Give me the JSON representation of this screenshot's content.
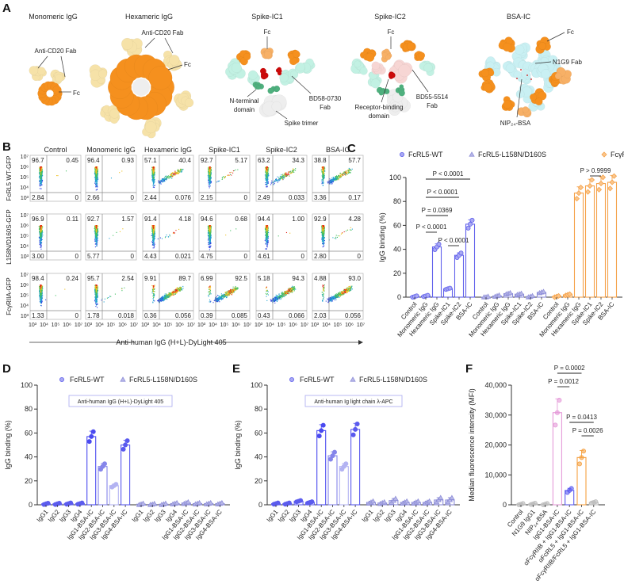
{
  "panel_labels": [
    "A",
    "B",
    "C",
    "D",
    "E",
    "F"
  ],
  "panel_a": {
    "structures": [
      {
        "title": "Monomeric IgG",
        "labels": [
          [
            "Anti-CD20 Fab"
          ],
          [
            "Fc"
          ]
        ]
      },
      {
        "title": "Hexameric IgG",
        "labels": [
          [
            "Anti-CD20 Fab"
          ],
          [
            "Fc"
          ]
        ]
      },
      {
        "title": "Spike-IC1",
        "labels": [
          [
            "Fc"
          ],
          [
            "N-terminal",
            "domain"
          ],
          [
            "BD58-0730",
            "Fab"
          ],
          [
            "Spike trimer"
          ]
        ]
      },
      {
        "title": "Spike-IC2",
        "labels": [
          [
            "Fc"
          ],
          [
            "Receptor-binding",
            "domain"
          ],
          [
            "BD55-5514",
            "Fab"
          ]
        ]
      },
      {
        "title": "BSA-IC",
        "labels": [
          [
            "Fc"
          ],
          [
            "N1G9 Fab"
          ],
          [
            "NIP₂₄-BSA"
          ]
        ]
      }
    ],
    "colors": {
      "fc": "#f5901e",
      "fc_light": "#f7b066",
      "anti_cd20_fab": "#f6e2a8",
      "spike_fab": "#c2f1e3",
      "bd55_fab": "#f7d6d4",
      "bsa_fab": "#c9f0f3",
      "rbd": "#cc0a0a",
      "ntd": "#4fb07e",
      "spike_trimer": "#eeeeee"
    }
  },
  "panel_b": {
    "columns": [
      "Control",
      "Monomeric IgG",
      "Hexameric IgG",
      "Spike-IC1",
      "Spike-IC2",
      "BSA-IC"
    ],
    "rows": [
      "FcRL5 WT-GFP",
      "L158N/D160S-GFP",
      "FcγRIIA-GFP"
    ],
    "axis_ticks": [
      "10³",
      "10⁴",
      "10⁵",
      "10⁶",
      "10⁷"
    ],
    "x_axis_title": "Anti-human IgG (H+L)-DyLight 405",
    "quadrants": [
      [
        {
          "ul": "96.7",
          "ur": "0.45",
          "ll": "2.84",
          "lr": "0"
        },
        {
          "ul": "96.4",
          "ur": "0.93",
          "ll": "2.66",
          "lr": "0"
        },
        {
          "ul": "57.1",
          "ur": "40.4",
          "ll": "2.44",
          "lr": "0.076"
        },
        {
          "ul": "92.7",
          "ur": "5.17",
          "ll": "2.15",
          "lr": "0"
        },
        {
          "ul": "63.2",
          "ur": "34.3",
          "ll": "2.49",
          "lr": "0.033"
        },
        {
          "ul": "38.8",
          "ur": "57.7",
          "ll": "3.36",
          "lr": "0.17"
        }
      ],
      [
        {
          "ul": "96.9",
          "ur": "0.11",
          "ll": "3.00",
          "lr": "0"
        },
        {
          "ul": "92.7",
          "ur": "1.57",
          "ll": "5.77",
          "lr": "0"
        },
        {
          "ul": "91.4",
          "ur": "4.18",
          "ll": "4.43",
          "lr": "0.021"
        },
        {
          "ul": "94.6",
          "ur": "0.68",
          "ll": "4.75",
          "lr": "0"
        },
        {
          "ul": "94.4",
          "ur": "1.00",
          "ll": "4.61",
          "lr": "0"
        },
        {
          "ul": "92.9",
          "ur": "4.28",
          "ll": "2.80",
          "lr": "0"
        }
      ],
      [
        {
          "ul": "98.4",
          "ur": "0.24",
          "ll": "1.33",
          "lr": "0"
        },
        {
          "ul": "95.7",
          "ur": "2.54",
          "ll": "1.78",
          "lr": "0.018"
        },
        {
          "ul": "9.91",
          "ur": "89.7",
          "ll": "0.36",
          "lr": "0.056"
        },
        {
          "ul": "6.99",
          "ur": "92.5",
          "ll": "0.39",
          "lr": "0.085"
        },
        {
          "ul": "5.18",
          "ur": "94.3",
          "ll": "0.43",
          "lr": "0.066"
        },
        {
          "ul": "4.88",
          "ur": "93.0",
          "ll": "2.03",
          "lr": "0.056"
        }
      ]
    ]
  },
  "chart_data": [
    {
      "panel": "C",
      "type": "bar",
      "ylabel": "IgG binding (%)",
      "ylim": [
        0,
        100
      ],
      "yticks": [
        "0",
        "20",
        "40",
        "60",
        "80",
        "100"
      ],
      "legend_placement": "top",
      "series": [
        {
          "name": "FcRL5-WT",
          "marker": "circle",
          "color": "#6262ec",
          "categories": [
            "Control",
            "Monomeric IgG",
            "Hexameric IgG",
            "Spike-IC1",
            "Spike-IC2",
            "BSA-IC"
          ],
          "values": [
            0.5,
            1,
            42,
            7,
            35,
            61
          ]
        },
        {
          "name": "FcRL5-L158N/D160S",
          "marker": "triangle",
          "color": "#8e8ed8",
          "categories": [
            "Control",
            "Monomeric IgG",
            "Hexameric IgG",
            "Spike-IC1",
            "Spike-IC2",
            "BSA-IC"
          ],
          "values": [
            0,
            1,
            3,
            2.5,
            0.5,
            4
          ]
        },
        {
          "name": "FcγRIIA",
          "marker": "diamond",
          "color": "#f5a24a",
          "categories": [
            "Control",
            "Monomeric IgG",
            "Hexameric IgG",
            "Spike-IC1",
            "Spike-IC2",
            "BSA-IC"
          ],
          "values": [
            0.5,
            2,
            87,
            93,
            95,
            96
          ]
        }
      ],
      "p_values": [
        {
          "series": 0,
          "between": [
            "Monomeric IgG",
            "BSA-IC"
          ],
          "text": "P < 0.0001"
        },
        {
          "series": 0,
          "between": [
            "Monomeric IgG",
            "Spike-IC2"
          ],
          "text": "P < 0.0001"
        },
        {
          "series": 0,
          "between": [
            "Monomeric IgG",
            "Spike-IC1"
          ],
          "text": "P = 0.0369"
        },
        {
          "series": 0,
          "between": [
            "Monomeric IgG",
            "Hexameric IgG"
          ],
          "text": "P < 0.0001"
        },
        {
          "series": 0,
          "between": [
            "Spike-IC1",
            "Spike-IC2"
          ],
          "text": "P < 0.0001"
        },
        {
          "series": 2,
          "between": [
            "Spike-IC1",
            "Spike-IC2"
          ],
          "text": "P > 0.9999"
        }
      ]
    },
    {
      "panel": "D",
      "type": "bar",
      "annotation": "Anti-human IgG (H+L)-DyLight 405",
      "ylabel": "IgG binding (%)",
      "ylim": [
        0,
        100
      ],
      "yticks": [
        "0",
        "20",
        "40",
        "60",
        "80",
        "100"
      ],
      "legend_placement": "top",
      "series": [
        {
          "name": "FcRL5-WT",
          "marker": "circle",
          "color": "#6262ec",
          "categories": [
            "IgG1",
            "IgG2",
            "IgG3",
            "IgG4",
            "IgG1-BSA-IC",
            "IgG2-BSA-IC",
            "IgG3-BSA-IC",
            "IgG4-BSA-IC"
          ],
          "values": [
            0.8,
            0.8,
            1,
            1,
            57,
            32,
            16,
            50
          ]
        },
        {
          "name": "FcRL5-L158N/D160S",
          "marker": "triangle",
          "color": "#8e8ed8",
          "categories": [
            "IgG1",
            "IgG2",
            "IgG3",
            "IgG4",
            "IgG1-BSA-IC",
            "IgG2-BSA-IC",
            "IgG3-BSA-IC",
            "IgG4-BSA-IC"
          ],
          "values": [
            0.5,
            0.3,
            0.5,
            1,
            1.5,
            1,
            1,
            1
          ]
        }
      ]
    },
    {
      "panel": "E",
      "type": "bar",
      "annotation": "Anti-human Ig light chain λ-APC",
      "ylabel": "IgG binding (%)",
      "ylim": [
        0,
        100
      ],
      "yticks": [
        "0",
        "20",
        "40",
        "60",
        "80",
        "100"
      ],
      "legend_placement": "top",
      "series": [
        {
          "name": "FcRL5-WT",
          "marker": "circle",
          "color": "#6262ec",
          "categories": [
            "IgG1",
            "IgG2",
            "IgG3",
            "IgG4",
            "IgG1-BSA-IC",
            "IgG2-BSA-IC",
            "IgG3-BSA-IC",
            "IgG4-BSA-IC"
          ],
          "values": [
            1,
            1,
            3,
            2,
            62,
            41,
            32,
            63
          ]
        },
        {
          "name": "FcRL5-L158N/D160S",
          "marker": "triangle",
          "color": "#8e8ed8",
          "categories": [
            "IgG1",
            "IgG2",
            "IgG3",
            "IgG4",
            "IgG1-BSA-IC",
            "IgG2-BSA-IC",
            "IgG3-BSA-IC",
            "IgG4-BSA-IC"
          ],
          "values": [
            2,
            1.5,
            3.5,
            2,
            2,
            2,
            4,
            4
          ]
        }
      ]
    },
    {
      "panel": "F",
      "type": "bar",
      "ylabel": "Median fluorescence intensity (MFI)",
      "ylim": [
        0,
        40000
      ],
      "yticks": [
        "0",
        "10,000",
        "20,000",
        "30,000",
        "40,000"
      ],
      "categories": [
        "Control",
        "N1G9 IgG1",
        "NIP₂₄-BSA",
        "IgG1-BSA-IC",
        "αFcγRIIB + IgG1-BSA-IC",
        "αFcRL5 + IgG1-BSA-IC",
        "αFcγRIIB/FcRL5 + IgG1-BSA-IC"
      ],
      "values": [
        200,
        300,
        200,
        30800,
        4800,
        15800,
        800
      ],
      "colors": [
        "#bdbdbd",
        "#bdbdbd",
        "#bdbdbd",
        "#e59ad8",
        "#5c5cf0",
        "#f5a040",
        "#bdbdbd"
      ],
      "p_values": [
        {
          "between": [
            "IgG1-BSA-IC",
            "αFcRL5 + IgG1-BSA-IC"
          ],
          "text": "P = 0.0002"
        },
        {
          "between": [
            "IgG1-BSA-IC",
            "αFcγRIIB + IgG1-BSA-IC"
          ],
          "text": "P = 0.0012"
        },
        {
          "between": [
            "αFcγRIIB + IgG1-BSA-IC",
            "αFcγRIIB/FcRL5 + IgG1-BSA-IC"
          ],
          "text": "P = 0.0413"
        },
        {
          "between": [
            "αFcRL5 + IgG1-BSA-IC",
            "αFcγRIIB/FcRL5 + IgG1-BSA-IC"
          ],
          "text": "P = 0.0026"
        }
      ]
    }
  ]
}
